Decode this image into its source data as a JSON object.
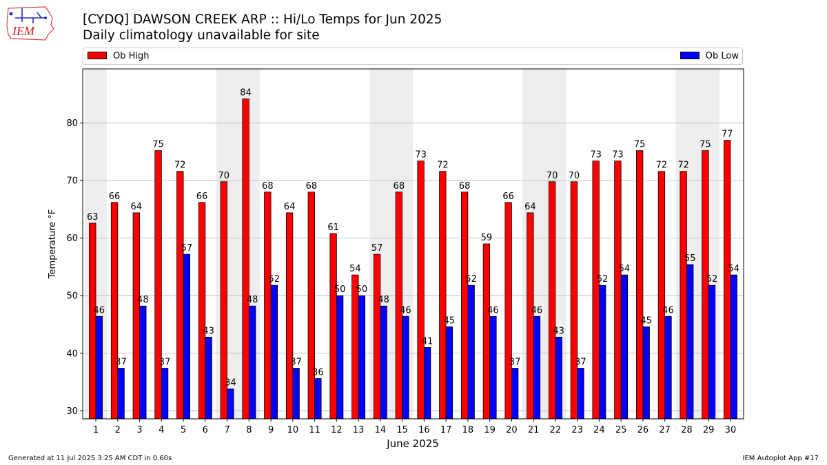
{
  "logo": {
    "text": "IEM"
  },
  "title": {
    "line1": "[CYDQ] DAWSON CREEK ARP :: Hi/Lo Temps for Jun 2025",
    "line2": "Daily climatology unavailable for site"
  },
  "legend": {
    "high_label": "Ob High",
    "low_label": "Ob Low"
  },
  "colors": {
    "high": "#ff0000",
    "low": "#0000ff",
    "weekend_band": "#eeeeee",
    "grid": "#b0b0b0"
  },
  "footer": {
    "generated": "Generated at 11 Jul 2025 3:25 AM CDT in 0.60s",
    "app": "IEM Autoplot App #17"
  },
  "chart_data": {
    "type": "bar",
    "xlabel": "June 2025",
    "ylabel": "Temperature °F",
    "ylim": [
      28.6,
      89.4
    ],
    "yticks": [
      30,
      40,
      50,
      60,
      70,
      80
    ],
    "grid": true,
    "legend_placement": "top, above plot",
    "categories": [
      "1",
      "2",
      "3",
      "4",
      "5",
      "6",
      "7",
      "8",
      "9",
      "10",
      "11",
      "12",
      "13",
      "14",
      "15",
      "16",
      "17",
      "18",
      "19",
      "20",
      "21",
      "22",
      "23",
      "24",
      "25",
      "26",
      "27",
      "28",
      "29",
      "30"
    ],
    "shaded_days": [
      1,
      7,
      8,
      14,
      15,
      21,
      22,
      28,
      29
    ],
    "series": [
      {
        "name": "Ob High",
        "color": "#ff0000",
        "values": [
          62.6,
          66.2,
          64.4,
          75.2,
          71.6,
          66.2,
          69.8,
          84.2,
          68.0,
          64.4,
          68.0,
          60.8,
          53.6,
          57.2,
          68.0,
          73.4,
          71.6,
          68.0,
          59.0,
          66.2,
          64.4,
          69.8,
          69.8,
          73.4,
          73.4,
          75.2,
          71.6,
          71.6,
          75.2,
          77.0
        ],
        "labels": [
          "63",
          "66",
          "64",
          "75",
          "72",
          "66",
          "70",
          "84",
          "68",
          "64",
          "68",
          "61",
          "54",
          "57",
          "68",
          "73",
          "72",
          "68",
          "59",
          "66",
          "64",
          "70",
          "70",
          "73",
          "73",
          "75",
          "72",
          "72",
          "75",
          "77"
        ]
      },
      {
        "name": "Ob Low",
        "color": "#0000ff",
        "values": [
          46.4,
          37.4,
          48.2,
          37.4,
          57.2,
          42.8,
          33.8,
          48.2,
          51.8,
          37.4,
          35.6,
          50.0,
          50.0,
          48.2,
          46.4,
          41.0,
          44.6,
          51.8,
          46.4,
          37.4,
          46.4,
          42.8,
          37.4,
          51.8,
          53.6,
          44.6,
          46.4,
          55.4,
          51.8,
          53.6
        ],
        "labels": [
          "46",
          "37",
          "48",
          "37",
          "57",
          "43",
          "34",
          "48",
          "52",
          "37",
          "36",
          "50",
          "50",
          "48",
          "46",
          "41",
          "45",
          "52",
          "46",
          "37",
          "46",
          "43",
          "37",
          "52",
          "54",
          "45",
          "46",
          "55",
          "52",
          "54"
        ]
      }
    ]
  }
}
